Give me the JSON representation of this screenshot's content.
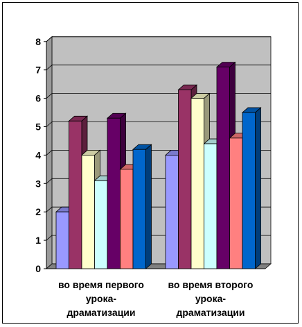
{
  "chart_data": {
    "type": "bar",
    "title": "",
    "xlabel": "",
    "ylabel": "",
    "ylim": [
      0,
      8
    ],
    "yticks": [
      0,
      1,
      2,
      3,
      4,
      5,
      6,
      7,
      8
    ],
    "grid": true,
    "legend": "none",
    "style": "3d-clustered-column",
    "categories": [
      [
        "во время первого",
        "урока-",
        "драматизации"
      ],
      [
        "во время второго",
        "урока-",
        "драматизации"
      ]
    ],
    "series": [
      {
        "color": "#9999FF",
        "values": [
          2.0,
          4.0
        ]
      },
      {
        "color": "#993366",
        "values": [
          5.2,
          6.3
        ]
      },
      {
        "color": "#FFFFCC",
        "values": [
          4.0,
          6.0
        ]
      },
      {
        "color": "#CCFFFF",
        "values": [
          3.1,
          4.4
        ]
      },
      {
        "color": "#660066",
        "values": [
          5.3,
          7.1
        ]
      },
      {
        "color": "#FF8080",
        "values": [
          3.5,
          4.6
        ]
      },
      {
        "color": "#0066CC",
        "values": [
          4.2,
          5.5
        ]
      }
    ],
    "colors": {
      "plot_wall": "#C0C0C0",
      "plot_floor": "#808080",
      "gridline": "#000000"
    }
  }
}
